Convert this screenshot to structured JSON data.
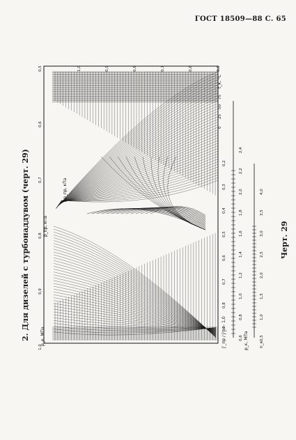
{
  "header": "ГОСТ 18509—88 С. 65",
  "section_title": "2. Для дизелей с турбонаддувом (черт. 29)",
  "caption": "Черт. 29",
  "left_scale": {
    "label": "p_e, МПа",
    "ticks": [
      "1,0",
      "0,9",
      "0,8",
      "0,7",
      "0,6",
      "0,5"
    ]
  },
  "top_scale": {
    "ticks": [
      "1,0",
      "0,9",
      "0,8",
      "0,7",
      "0,6",
      "0,5"
    ]
  },
  "bottom_scale": {
    "label": "j'_пр / j'_н - 1,0",
    "ticks": [
      "0,9",
      "0,8",
      "0,7",
      "0,6",
      "0,5",
      "0,4",
      "0,3",
      "0,2"
    ]
  },
  "right_scales": {
    "nk_label": "n_к",
    "nk_ticks": [
      "0,5",
      "1,0",
      "1,5",
      "2,0",
      "2,5",
      "3,0",
      "3,5",
      "4,0"
    ],
    "pk_label": "p_к, МПа",
    "pk_ticks": [
      "0,6",
      "0,8",
      "1,0",
      "1,2",
      "1,4",
      "1,6",
      "1,8",
      "2,0",
      "2,2",
      "2,4"
    ]
  },
  "axis_labels": {
    "tk": "t_к, °С",
    "t_values": [
      "75",
      "50",
      "25",
      "0"
    ],
    "pnp": "p_np, кПа",
    "dp": "Δp_пр, кПа"
  }
}
